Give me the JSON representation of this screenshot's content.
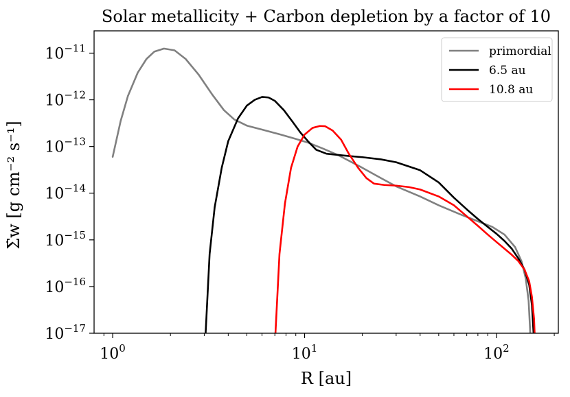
{
  "chart_data": {
    "type": "line",
    "title": "Solar metallicity + Carbon depletion by a factor of 10",
    "xlabel": "R [au]",
    "ylabel": "Σ̇w [g cm⁻² s⁻¹]",
    "xscale": "log",
    "yscale": "log",
    "xlim": [
      0.8,
      210
    ],
    "ylim": [
      1e-17,
      3e-11
    ],
    "xticks": [
      {
        "value": 1,
        "mantissa": "10",
        "exp": "0"
      },
      {
        "value": 10,
        "mantissa": "10",
        "exp": "1"
      },
      {
        "value": 100,
        "mantissa": "10",
        "exp": "2"
      }
    ],
    "yticks": [
      {
        "value": 1e-17,
        "mantissa": "10",
        "exp": "−17"
      },
      {
        "value": 1e-16,
        "mantissa": "10",
        "exp": "−16"
      },
      {
        "value": 1e-15,
        "mantissa": "10",
        "exp": "−15"
      },
      {
        "value": 1e-14,
        "mantissa": "10",
        "exp": "−14"
      },
      {
        "value": 1e-13,
        "mantissa": "10",
        "exp": "−13"
      },
      {
        "value": 1e-12,
        "mantissa": "10",
        "exp": "−12"
      },
      {
        "value": 1e-11,
        "mantissa": "10",
        "exp": "−11"
      }
    ],
    "legend_position": "top-right",
    "series": [
      {
        "name": "primordial",
        "color": "#808080",
        "points": [
          [
            1.0,
            6e-14
          ],
          [
            1.1,
            3.5e-13
          ],
          [
            1.2,
            1.2e-12
          ],
          [
            1.35,
            3.8e-12
          ],
          [
            1.5,
            7.5e-12
          ],
          [
            1.65,
            1.08e-11
          ],
          [
            1.85,
            1.25e-11
          ],
          [
            2.1,
            1.15e-11
          ],
          [
            2.4,
            7.5e-12
          ],
          [
            2.8,
            3.5e-12
          ],
          [
            3.3,
            1.3e-12
          ],
          [
            3.8,
            6e-13
          ],
          [
            4.3,
            3.8e-13
          ],
          [
            5.0,
            2.8e-13
          ],
          [
            6.0,
            2.3e-13
          ],
          [
            7.5,
            1.8e-13
          ],
          [
            9.0,
            1.45e-13
          ],
          [
            10.5,
            1.2e-13
          ],
          [
            12.5,
            9e-14
          ],
          [
            15,
            6.5e-14
          ],
          [
            20,
            3.5e-14
          ],
          [
            25,
            2.1e-14
          ],
          [
            30,
            1.4e-14
          ],
          [
            40,
            8.5e-15
          ],
          [
            50,
            5.5e-15
          ],
          [
            65,
            3.5e-15
          ],
          [
            80,
            2.5e-15
          ],
          [
            95,
            1.9e-15
          ],
          [
            110,
            1.3e-15
          ],
          [
            125,
            7e-16
          ],
          [
            135,
            3.5e-16
          ],
          [
            142,
            1.5e-16
          ],
          [
            147,
            5e-17
          ],
          [
            150,
            1e-17
          ]
        ]
      },
      {
        "name": "6.5 au",
        "color": "#000000",
        "points": [
          [
            3.05,
            1e-17
          ],
          [
            3.2,
            5e-16
          ],
          [
            3.4,
            5e-15
          ],
          [
            3.7,
            3.5e-14
          ],
          [
            4.0,
            1.3e-13
          ],
          [
            4.5,
            4e-13
          ],
          [
            5.0,
            7.5e-13
          ],
          [
            5.5,
            1e-12
          ],
          [
            6.0,
            1.15e-12
          ],
          [
            6.5,
            1.12e-12
          ],
          [
            7.0,
            9.5e-13
          ],
          [
            7.8,
            6e-13
          ],
          [
            8.7,
            3.3e-13
          ],
          [
            9.5,
            2e-13
          ],
          [
            10.5,
            1.25e-13
          ],
          [
            11.5,
            8.5e-14
          ],
          [
            13,
            7e-14
          ],
          [
            16,
            6.4e-14
          ],
          [
            20,
            5.9e-14
          ],
          [
            25,
            5.3e-14
          ],
          [
            30,
            4.6e-14
          ],
          [
            40,
            3.1e-14
          ],
          [
            50,
            1.7e-14
          ],
          [
            60,
            8e-15
          ],
          [
            70,
            4.5e-15
          ],
          [
            80,
            2.8e-15
          ],
          [
            90,
            1.9e-15
          ],
          [
            100,
            1.35e-15
          ],
          [
            110,
            9.5e-16
          ],
          [
            120,
            6.5e-16
          ],
          [
            130,
            4e-16
          ],
          [
            140,
            2.3e-16
          ],
          [
            148,
            1.1e-16
          ],
          [
            153,
            4e-17
          ],
          [
            156,
            1e-17
          ]
        ]
      },
      {
        "name": "10.8 au",
        "color": "#ff0000",
        "points": [
          [
            7.05,
            1e-17
          ],
          [
            7.4,
            5e-16
          ],
          [
            7.9,
            6e-15
          ],
          [
            8.5,
            3.5e-14
          ],
          [
            9.2,
            1e-13
          ],
          [
            10.0,
            1.8e-13
          ],
          [
            11.0,
            2.5e-13
          ],
          [
            12.0,
            2.75e-13
          ],
          [
            12.8,
            2.72e-13
          ],
          [
            14.0,
            2.2e-13
          ],
          [
            15.5,
            1.4e-13
          ],
          [
            17,
            7e-14
          ],
          [
            19,
            3.5e-14
          ],
          [
            21,
            2.1e-14
          ],
          [
            23,
            1.6e-14
          ],
          [
            26,
            1.5e-14
          ],
          [
            30,
            1.45e-14
          ],
          [
            35,
            1.35e-14
          ],
          [
            40,
            1.2e-14
          ],
          [
            50,
            8.5e-15
          ],
          [
            60,
            5.5e-15
          ],
          [
            70,
            3.2e-15
          ],
          [
            80,
            2e-15
          ],
          [
            90,
            1.3e-15
          ],
          [
            100,
            9e-16
          ],
          [
            110,
            6.5e-16
          ],
          [
            120,
            4.8e-16
          ],
          [
            130,
            3.5e-16
          ],
          [
            140,
            2.3e-16
          ],
          [
            148,
            1.3e-16
          ],
          [
            153,
            6e-17
          ],
          [
            157,
            2e-17
          ],
          [
            158,
            1e-17
          ]
        ]
      }
    ]
  }
}
